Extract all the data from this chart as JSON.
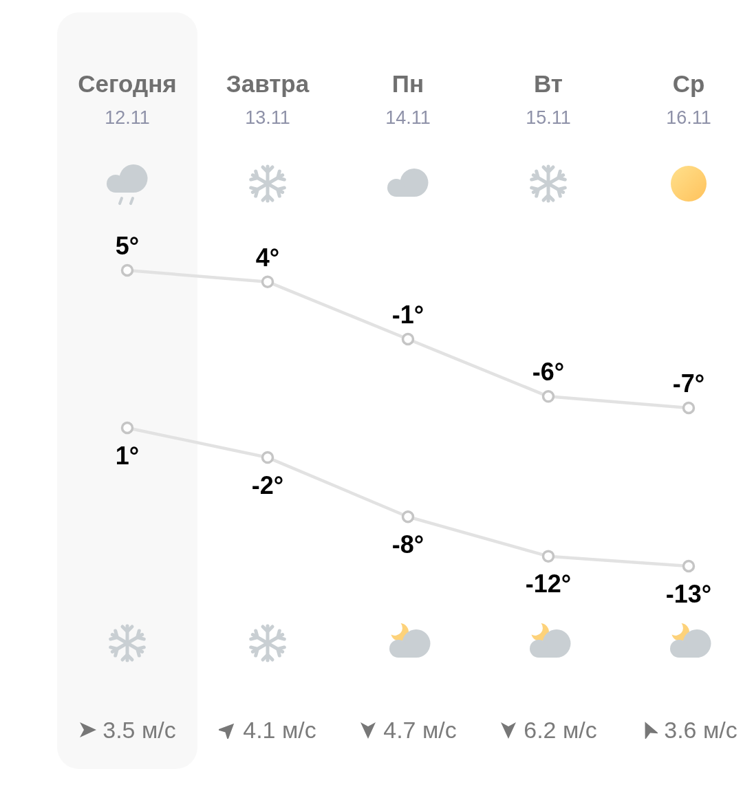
{
  "chart_data": [
    {
      "type": "line",
      "categories": [
        "Сегодня\n12.11",
        "Завтра\n13.11",
        "Пн\n14.11",
        "Вт\n15.11",
        "Ср\n16.11"
      ],
      "series": [
        {
          "color": "#e2e2e2",
          "values": [
            5,
            4,
            -1,
            -6,
            -7
          ],
          "value_labels": [
            "5°",
            "4°",
            "-1°",
            "-6°",
            "-7°"
          ]
        }
      ],
      "tick_labels": "x",
      "marker": "circle",
      "bands": [
        {
          "axis": "x",
          "from": "Сегодня\n12.11",
          "to": "Сегодня\n12.11",
          "color": "#f8f8f8"
        }
      ]
    },
    {
      "type": "line",
      "categories": [
        "Сегодня\n12.11",
        "Завтра\n13.11",
        "Пн\n14.11",
        "Вт\n15.11",
        "Ср\n16.11"
      ],
      "series": [
        {
          "color": "#e2e2e2",
          "values": [
            1,
            -2,
            -8,
            -12,
            -13
          ],
          "value_labels": [
            "1°",
            "-2°",
            "-8°",
            "-12°",
            "-13°"
          ]
        }
      ],
      "tick_labels": false,
      "marker": "circle",
      "bands": [
        {
          "axis": "x",
          "from": "Сегодня\n12.11",
          "to": "Сегодня\n12.11",
          "color": "#f8f8f8"
        }
      ],
      "annotations": [
        "3.5 м/с",
        "4.1 м/с",
        "4.7 м/с",
        "6.2 м/с",
        "3.6 м/с"
      ]
    }
  ]
}
